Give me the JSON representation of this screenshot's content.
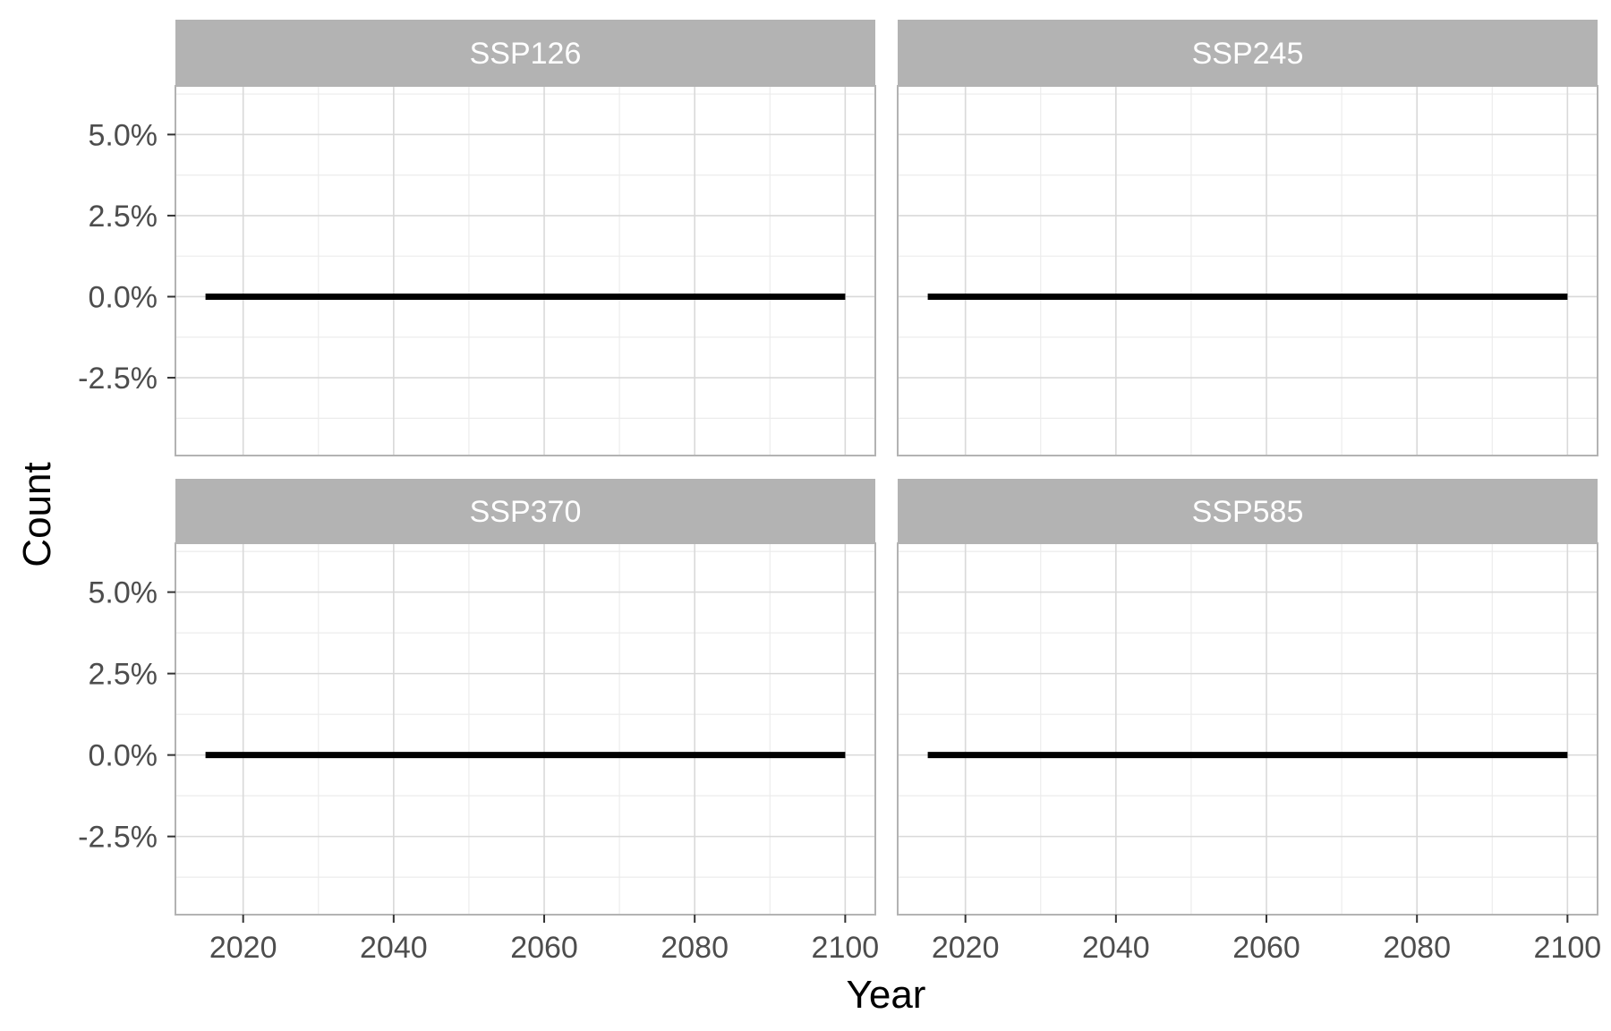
{
  "chart_data": {
    "type": "line",
    "xlabel": "Year",
    "ylabel": "Count",
    "xlim": [
      2011,
      2104
    ],
    "ylim": [
      -4.9,
      6.5
    ],
    "x_ticks": [
      2020,
      2040,
      2060,
      2080,
      2100
    ],
    "x_tick_labels": [
      "2020",
      "2040",
      "2060",
      "2080",
      "2100"
    ],
    "y_ticks": [
      5.0,
      2.5,
      0.0,
      -2.5
    ],
    "y_tick_labels": [
      "5.0%",
      "2.5%",
      "0.0%",
      "-2.5%"
    ],
    "y_unit": "%",
    "grid": true,
    "facets": [
      {
        "label": "SSP126",
        "x": [
          2015,
          2100
        ],
        "y": [
          0.0,
          0.0
        ]
      },
      {
        "label": "SSP245",
        "x": [
          2015,
          2100
        ],
        "y": [
          0.0,
          0.0
        ]
      },
      {
        "label": "SSP370",
        "x": [
          2015,
          2100
        ],
        "y": [
          0.0,
          0.0
        ]
      },
      {
        "label": "SSP585",
        "x": [
          2015,
          2100
        ],
        "y": [
          0.0,
          0.0
        ]
      }
    ],
    "colors": {
      "line": "#000000",
      "strip_bg": "#b3b3b3",
      "strip_text": "#ffffff",
      "panel_border": "#b3b3b3",
      "grid_major": "#d9d9d9",
      "grid_minor": "#ececec",
      "tick_text": "#4d4d4d"
    }
  }
}
